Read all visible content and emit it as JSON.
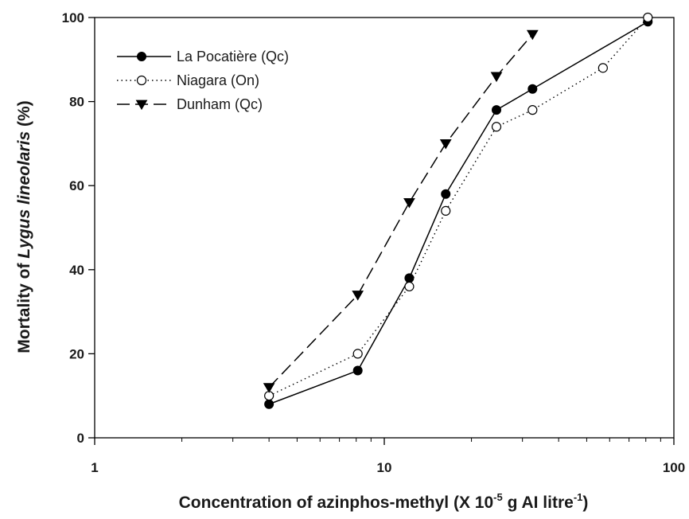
{
  "chart_data": {
    "type": "line",
    "x_scale": "log",
    "xlim": [
      1,
      100
    ],
    "ylim": [
      0,
      100
    ],
    "x_ticks": [
      1,
      10,
      100
    ],
    "y_ticks": [
      0,
      20,
      40,
      60,
      80,
      100
    ],
    "x_tick_labels": [
      "1",
      "10",
      "100"
    ],
    "y_tick_labels": [
      "0",
      "20",
      "40",
      "60",
      "80",
      "100"
    ],
    "xlabel": {
      "prefix": "Concentration of azinphos-methyl (X 10",
      "sup1": "-5",
      "mid": " g AI litre",
      "sup2": "-1",
      "suffix": ")"
    },
    "ylabel": {
      "prefix": "Mortality of ",
      "italic": "Lygus lineolaris",
      "suffix": " (%)"
    },
    "legend_position": "top-left",
    "grid": false,
    "series": [
      {
        "name": "La Pocatière (Qc)",
        "line_style": "solid",
        "marker": "filled-circle",
        "color": "#000000",
        "points": [
          [
            4,
            8
          ],
          [
            8.1,
            16
          ],
          [
            12.2,
            38
          ],
          [
            16.3,
            58
          ],
          [
            24.4,
            78
          ],
          [
            32.5,
            83
          ],
          [
            81.3,
            99
          ]
        ]
      },
      {
        "name": "Niagara (On)",
        "line_style": "dotted",
        "marker": "open-circle",
        "color": "#000000",
        "points": [
          [
            4,
            10
          ],
          [
            8.1,
            20
          ],
          [
            12.2,
            36
          ],
          [
            16.3,
            54
          ],
          [
            24.4,
            74
          ],
          [
            32.5,
            78
          ],
          [
            56.9,
            88
          ],
          [
            81.3,
            100
          ]
        ]
      },
      {
        "name": "Dunham (Qc)",
        "line_style": "dashed",
        "marker": "filled-triangle-down",
        "color": "#000000",
        "points": [
          [
            4,
            12
          ],
          [
            8.1,
            34
          ],
          [
            12.2,
            56
          ],
          [
            16.3,
            70
          ],
          [
            24.4,
            86
          ],
          [
            32.5,
            96
          ]
        ]
      }
    ]
  }
}
